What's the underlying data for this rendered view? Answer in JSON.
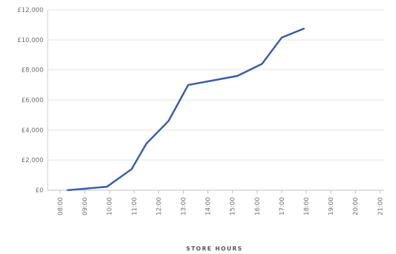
{
  "chart_data": {
    "type": "line",
    "title": "",
    "xlabel": "STORE HOURS",
    "ylabel": "",
    "x_tick_labels": [
      "08:00",
      "09:00",
      "10:00",
      "11:00",
      "12:00",
      "13:00",
      "14:00",
      "15:00",
      "16:00",
      "17:00",
      "18:00",
      "19:00",
      "20:00",
      "21:00"
    ],
    "y_tick_labels": [
      "£0",
      "£2,000",
      "£4,000",
      "£6,000",
      "£8,000",
      "£10,000",
      "£12,000"
    ],
    "y_ticks": [
      0,
      2000,
      4000,
      6000,
      8000,
      10000,
      12000
    ],
    "ylim": [
      0,
      12000
    ],
    "x_range_hours": [
      8,
      21
    ],
    "grid": "horizontal",
    "series": [
      {
        "color": "#3b5ca8",
        "x": [
          8.3,
          9.0,
          9.9,
          10.9,
          11.5,
          12.4,
          13.2,
          14.2,
          15.2,
          16.2,
          17.0,
          17.9,
          18.8
        ],
        "y": [
          0,
          100,
          230,
          1400,
          3100,
          4600,
          7000,
          7300,
          7600,
          8400,
          10150,
          10750,
          null
        ]
      }
    ]
  }
}
